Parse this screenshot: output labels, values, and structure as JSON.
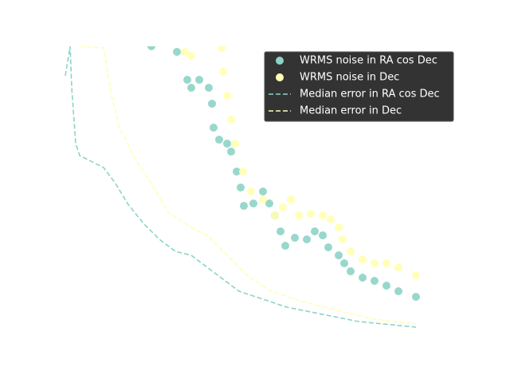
{
  "chart_data": {
    "type": "scatter-line",
    "xlim": [
      0,
      496
    ],
    "ylim": [
      0,
      369
    ],
    "legend": "upper right",
    "series": [
      {
        "name": "WRMS noise in RA cos Dec",
        "kind": "scatter",
        "color": "#8dd3c7",
        "x": [
          110,
          142,
          155,
          160,
          170,
          182,
          186,
          188,
          195,
          205,
          210,
          217,
          222,
          226,
          238,
          250,
          258,
          265,
          272,
          278,
          290,
          305,
          315,
          325,
          332,
          345,
          352,
          360,
          375,
          390,
          405,
          420,
          442
        ],
        "values": [
          369,
          362,
          327,
          317,
          327,
          317,
          297,
          267,
          252,
          247,
          237,
          212,
          192,
          169,
          172,
          187,
          172,
          157,
          137,
          119,
          129,
          127,
          137,
          132,
          117,
          107,
          97,
          87,
          79,
          75,
          69,
          62,
          55
        ]
      },
      {
        "name": "WRMS noise in Dec",
        "kind": "scatter",
        "color": "#ffffb3",
        "x": [
          152,
          160,
          198,
          200,
          205,
          210,
          215,
          225,
          235,
          250,
          265,
          275,
          285,
          295,
          310,
          325,
          335,
          345,
          350,
          360,
          375,
          390,
          405,
          420,
          442
        ],
        "values": [
          362,
          357,
          367,
          337,
          307,
          277,
          247,
          212,
          187,
          177,
          157,
          167,
          177,
          157,
          159,
          157,
          152,
          142,
          127,
          112,
          102,
          97,
          97,
          92,
          82
        ]
      },
      {
        "name": "Median error in RA cos Dec",
        "kind": "line",
        "color": "#8dd3c7",
        "x": [
          2,
          8,
          10,
          15,
          20,
          30,
          50,
          65,
          80,
          100,
          120,
          140,
          160,
          180,
          200,
          220,
          250,
          280,
          320,
          370,
          442
        ],
        "values": [
          332,
          369,
          317,
          247,
          232,
          227,
          217,
          197,
          172,
          147,
          127,
          112,
          107,
          92,
          77,
          62,
          52,
          42,
          34,
          24,
          17
        ]
      },
      {
        "name": "Median error in Dec",
        "kind": "line",
        "color": "#ffffb3",
        "x": [
          20,
          50,
          60,
          70,
          90,
          110,
          130,
          160,
          180,
          205,
          230,
          260,
          300,
          340,
          390,
          442
        ],
        "values": [
          369,
          367,
          307,
          267,
          227,
          197,
          162,
          142,
          132,
          107,
          82,
          62,
          49,
          39,
          27,
          21
        ]
      }
    ]
  }
}
